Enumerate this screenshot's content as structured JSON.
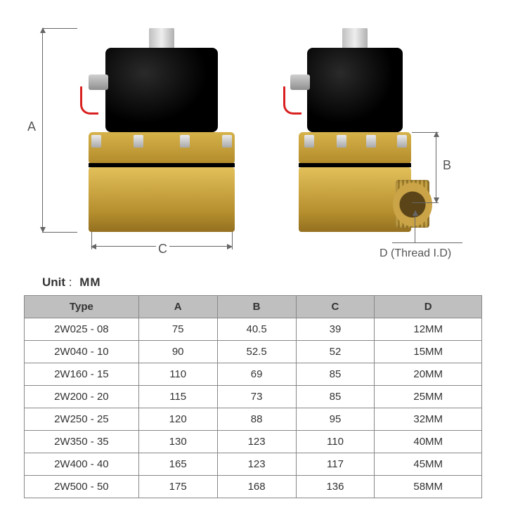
{
  "dimensions": {
    "a_label": "A",
    "b_label": "B",
    "c_label": "C",
    "d_label": "D (Thread I.D)"
  },
  "unit": {
    "label": "Unit",
    "value": "MM"
  },
  "table": {
    "headers": {
      "type": "Type",
      "a": "A",
      "b": "B",
      "c": "C",
      "d": "D"
    },
    "rows": [
      {
        "type": "2W025 - 08",
        "a": "75",
        "b": "40.5",
        "c": "39",
        "d": "12MM"
      },
      {
        "type": "2W040 - 10",
        "a": "90",
        "b": "52.5",
        "c": "52",
        "d": "15MM"
      },
      {
        "type": "2W160 - 15",
        "a": "110",
        "b": "69",
        "c": "85",
        "d": "20MM"
      },
      {
        "type": "2W200 - 20",
        "a": "115",
        "b": "73",
        "c": "85",
        "d": "25MM"
      },
      {
        "type": "2W250 - 25",
        "a": "120",
        "b": "88",
        "c": "95",
        "d": "32MM"
      },
      {
        "type": "2W350 - 35",
        "a": "130",
        "b": "123",
        "c": "110",
        "d": "40MM"
      },
      {
        "type": "2W400 - 40",
        "a": "165",
        "b": "123",
        "c": "117",
        "d": "45MM"
      },
      {
        "type": "2W500 - 50",
        "a": "175",
        "b": "168",
        "c": "136",
        "d": "58MM"
      }
    ]
  },
  "colors": {
    "brass": "#caa447",
    "coil": "#0a0a0a",
    "steel": "#c8c8c8",
    "wire": "#d92020",
    "grid": "#888888",
    "header_bg": "#bfbfbf"
  }
}
